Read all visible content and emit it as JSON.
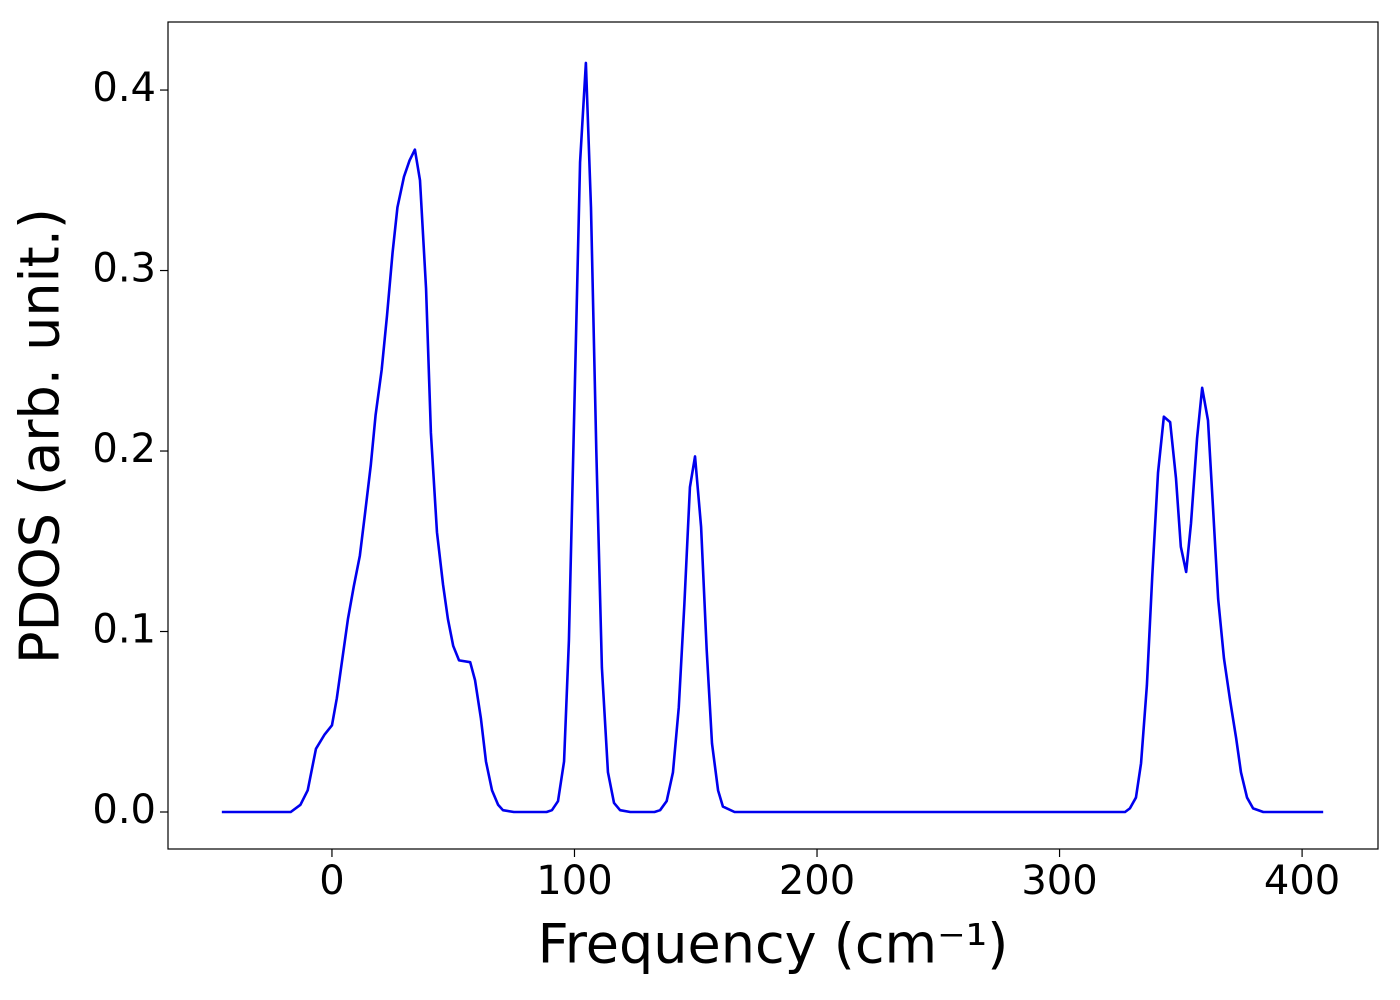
{
  "chart_data": {
    "type": "line",
    "xlabel": "Frequency (cm⁻¹)",
    "ylabel": "PDOS (arb. unit.)",
    "x": [
      -45.4,
      -17,
      -13,
      -10,
      -6.6,
      -3,
      0,
      2,
      4.3,
      6.6,
      9,
      11.5,
      13.6,
      16,
      18,
      20.5,
      22.7,
      25,
      27,
      29.7,
      32,
      34.2,
      36.3,
      38.8,
      40.8,
      43.3,
      45.8,
      47.8,
      50,
      52.4,
      57,
      59,
      61.4,
      63.5,
      66,
      68.5,
      70.5,
      75,
      88.5,
      90.7,
      93.2,
      95.7,
      97.7,
      102.3,
      104.7,
      106.8,
      109,
      111.3,
      113.8,
      116.3,
      118.8,
      123,
      133,
      135.3,
      138,
      140.6,
      143,
      145.3,
      147.6,
      149.7,
      152.2,
      154.5,
      156.7,
      159.2,
      161.2,
      166,
      327,
      329,
      331.5,
      333.6,
      336,
      338.2,
      340.6,
      343,
      345.6,
      348,
      350,
      352.2,
      354.2,
      356.7,
      358.8,
      361.2,
      363.3,
      365.4,
      367.8,
      370.3,
      372.8,
      374.8,
      377.3,
      379.8,
      384,
      408.7
    ],
    "series": [
      {
        "name": "PDOS",
        "color": "#0000ee",
        "values": [
          0,
          0,
          0.004,
          0.012,
          0.035,
          0.043,
          0.048,
          0.063,
          0.085,
          0.107,
          0.125,
          0.142,
          0.165,
          0.192,
          0.22,
          0.245,
          0.275,
          0.31,
          0.335,
          0.352,
          0.361,
          0.367,
          0.35,
          0.29,
          0.21,
          0.155,
          0.126,
          0.107,
          0.092,
          0.084,
          0.083,
          0.073,
          0.052,
          0.028,
          0.012,
          0.004,
          0.001,
          0,
          0,
          0.001,
          0.006,
          0.028,
          0.095,
          0.36,
          0.415,
          0.335,
          0.2,
          0.08,
          0.022,
          0.005,
          0.001,
          0,
          0,
          0.001,
          0.006,
          0.022,
          0.058,
          0.115,
          0.18,
          0.197,
          0.158,
          0.09,
          0.038,
          0.012,
          0.003,
          0,
          0,
          0.002,
          0.008,
          0.027,
          0.07,
          0.13,
          0.188,
          0.219,
          0.216,
          0.185,
          0.147,
          0.133,
          0.16,
          0.207,
          0.235,
          0.217,
          0.168,
          0.118,
          0.085,
          0.062,
          0.041,
          0.022,
          0.008,
          0.002,
          0,
          0
        ]
      }
    ],
    "xlim": [
      -67.6,
      431.3
    ],
    "ylim": [
      -0.0205,
      0.4377
    ],
    "xticks": [
      0,
      100,
      200,
      300,
      400
    ],
    "yticks": [
      {
        "value": 0,
        "label": "0.0"
      },
      {
        "value": 0.1,
        "label": "0.1"
      },
      {
        "value": 0.2,
        "label": "0.2"
      },
      {
        "value": 0.3,
        "label": "0.3"
      },
      {
        "value": 0.4,
        "label": "0.4"
      }
    ],
    "grid": false
  }
}
